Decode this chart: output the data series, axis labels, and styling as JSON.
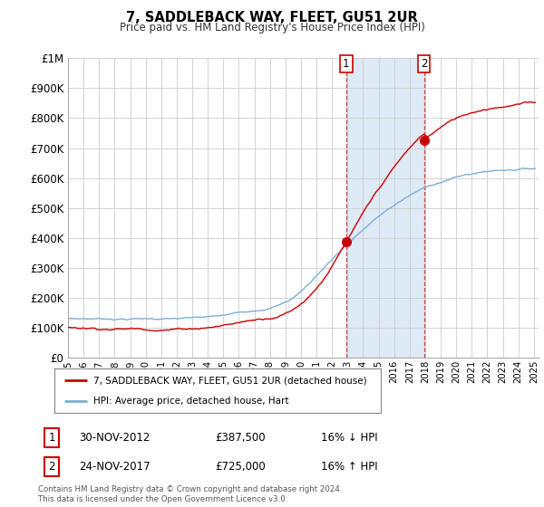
{
  "title": "7, SADDLEBACK WAY, FLEET, GU51 2UR",
  "subtitle": "Price paid vs. HM Land Registry's House Price Index (HPI)",
  "ylim": [
    0,
    1000000
  ],
  "yticks": [
    0,
    100000,
    200000,
    300000,
    400000,
    500000,
    600000,
    700000,
    800000,
    900000,
    1000000
  ],
  "ytick_labels": [
    "£0",
    "£100K",
    "£200K",
    "£300K",
    "£400K",
    "£500K",
    "£600K",
    "£700K",
    "£800K",
    "£900K",
    "£1M"
  ],
  "hpi_color": "#7bafd4",
  "price_color": "#cc0000",
  "purchase1_date": 2012.917,
  "purchase1_price": 387500,
  "purchase2_date": 2017.917,
  "purchase2_price": 725000,
  "legend_house": "7, SADDLEBACK WAY, FLEET, GU51 2UR (detached house)",
  "legend_hpi": "HPI: Average price, detached house, Hart",
  "background_color": "#ffffff",
  "grid_color": "#cccccc",
  "highlight_fill": "#deeaf5"
}
